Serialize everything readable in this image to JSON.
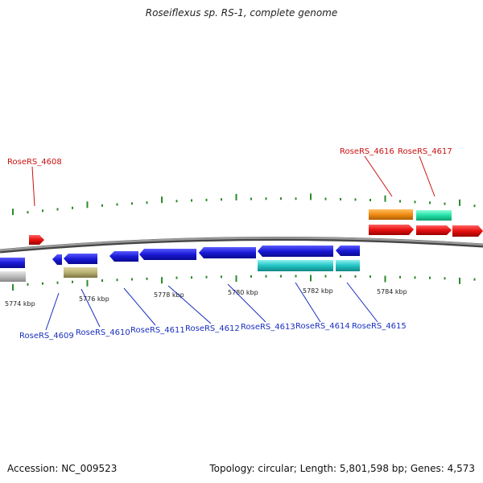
{
  "title": "Roseiflexus sp. RS-1, complete genome",
  "footer": {
    "accession": "Accession: NC_009523",
    "topology": "Topology: circular; Length: 5,801,598 bp; Genes: 4,573"
  },
  "axis_labels": [
    "5774 kbp",
    "5776 kbp",
    "5778 kbp",
    "5780 kbp",
    "5782 kbp",
    "5784 kbp"
  ],
  "gene_labels_top": [
    "RoseRS_4608",
    "RoseRS_4616",
    "RoseRS_4617"
  ],
  "gene_labels_bottom": [
    "RoseRS_4609",
    "RoseRS_4610",
    "RoseRS_4611",
    "RoseRS_4612",
    "RoseRS_4613",
    "RoseRS_4614",
    "RoseRS_4615"
  ],
  "colors": {
    "backbone": "#777777",
    "tick": "#2a8a2a",
    "top_label": "#cc1111",
    "bottom_label": "#1a2fbf",
    "cds_blue": "#1a1ad6",
    "rna_red": "#e61010",
    "cyan": "#22c4c4",
    "orange": "#f08c14",
    "mint": "#22e0a8",
    "olive": "#b8b070",
    "grey": "#bbbbbb"
  }
}
